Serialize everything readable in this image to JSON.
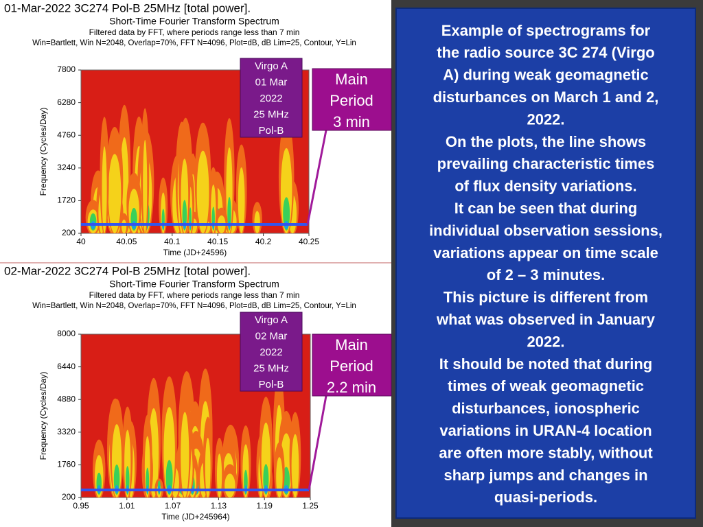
{
  "plots": [
    {
      "title": "01-Mar-2022 3C274 Pol-B 25MHz [total power].",
      "subtitle": "Short-Time Fourier Transform Spectrum",
      "filter": "Filtered data by FFT, where periods range less than 7 min",
      "params": "Win=Bartlett, Win N=2048, Overlap=70%, FFT N=4096, Plot=dB, dB Lim=25, Contour, Y=Lin",
      "ylabel": "Frequency (Cycles/Day)",
      "xlabel": "Time (JD+24596)",
      "yticks": [
        "7800",
        "6280",
        "4760",
        "3240",
        "1720",
        "200"
      ],
      "xticks": [
        "40",
        "40.05",
        "40.1",
        "40.15",
        "40.2",
        "40.25"
      ],
      "source_label": [
        "Virgo A",
        "01 Mar",
        "2022",
        "25 MHz",
        "Pol-B"
      ],
      "period_label": [
        "Main",
        "Period",
        "3 min"
      ]
    },
    {
      "title": "02-Mar-2022 3C274 Pol-B 25MHz [total power].",
      "subtitle": "Short-Time Fourier Transform Spectrum",
      "filter": "Filtered data by FFT, where periods range less than 7 min",
      "params": "Win=Bartlett, Win N=2048, Overlap=70%, FFT N=4096, Plot=dB, dB Lim=25, Contour, Y=Lin",
      "ylabel": "Frequency (Cycles/Day)",
      "xlabel": "Time (JD+245964)",
      "yticks": [
        "8000",
        "6440",
        "4880",
        "3320",
        "1760",
        "200"
      ],
      "xticks": [
        "0.95",
        "1.01",
        "1.07",
        "1.13",
        "1.19",
        "1.25"
      ],
      "source_label": [
        "Virgo A",
        "02 Mar",
        "2022",
        "25 MHz",
        "Pol-B"
      ],
      "period_label": [
        "Main",
        "Period",
        "2.2 min"
      ]
    }
  ],
  "text_box": {
    "lines": [
      "Example of spectrograms for",
      "the radio source 3C 274 (Virgo",
      "A) during weak geomagnetic",
      "disturbances on March 1 and 2,",
      "2022.",
      "On the plots, the line shows",
      "prevailing characteristic times",
      "of flux density variations.",
      "It can be seen that during",
      "individual observation sessions,",
      "variations appear on time scale",
      "of 2 – 3 minutes.",
      "This picture is different from",
      "what was observed in January",
      "2022.",
      "It should be noted that during",
      "times of weak geomagnetic",
      "disturbances, ionospheric",
      "variations in URAN-4 location",
      "are often more stably, without",
      "sharp jumps and changes in",
      "quasi-periods."
    ]
  }
}
